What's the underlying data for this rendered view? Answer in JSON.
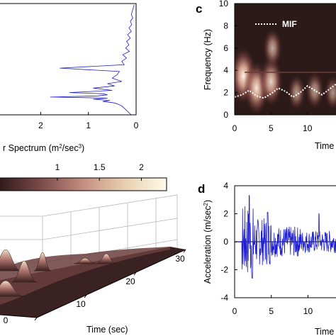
{
  "colors": {
    "series_blue": "#1f1fd0",
    "dark_bg": "#2b1a18",
    "mif_line": "#ffffff",
    "colorbar_low": "#3a2020",
    "colorbar_high": "#fffde8"
  },
  "panel_c": {
    "label": "c",
    "legend": "MIF"
  },
  "panel_d": {
    "label": "d"
  },
  "chart_data": [
    {
      "type": "line",
      "panel": "top-left (Fourier spectrum, frequency on vertical axis)",
      "xlabel": "r Spectrum (m²/sec³)",
      "xlabel_base": "r Spectrum (m",
      "xlabel_sup1": "2",
      "xlabel_mid": "/sec",
      "xlabel_sup2": "3",
      "xlabel_end": ")",
      "xticks": [
        "2",
        "1",
        "0"
      ],
      "xlim_reversed": [
        2.8,
        0
      ],
      "x": [
        0.04,
        0.06,
        0.08,
        0.1,
        0.07,
        0.12,
        0.09,
        0.15,
        0.1,
        0.18,
        0.12,
        0.2,
        0.15,
        0.22,
        0.14,
        0.28,
        0.2,
        0.3,
        0.25,
        1.6,
        0.35,
        0.4,
        0.5,
        0.3,
        0.6,
        0.45,
        0.9,
        0.5,
        1.4,
        0.7,
        0.6,
        0.8,
        1.8,
        0.6,
        0.9,
        0.55,
        0.7,
        0.5,
        0.4,
        0.35,
        0.3,
        0.25,
        0.2,
        0.15,
        0.1
      ],
      "y": [
        9.9,
        9.6,
        9.3,
        9.0,
        8.7,
        8.4,
        8.1,
        7.8,
        7.5,
        7.2,
        6.9,
        6.6,
        6.3,
        6.0,
        5.7,
        5.4,
        5.1,
        4.8,
        4.5,
        4.2,
        3.9,
        3.6,
        3.3,
        3.0,
        2.8,
        2.6,
        2.4,
        2.2,
        2.0,
        1.9,
        1.8,
        1.7,
        1.6,
        1.5,
        1.4,
        1.3,
        1.2,
        1.1,
        1.0,
        0.9,
        0.8,
        0.6,
        0.4,
        0.2,
        0.0
      ]
    },
    {
      "type": "heatmap",
      "panel": "c",
      "ylabel": "Frequency (Hz)",
      "xlabel": "Time",
      "xticks": [
        "0",
        "5",
        "10",
        "1"
      ],
      "yticks": [
        "0",
        "2",
        "4",
        "6",
        "8",
        "10"
      ],
      "ylim": [
        0,
        10
      ],
      "series": [
        {
          "name": "MIF",
          "x": [
            0,
            1,
            2,
            3,
            4,
            5,
            6,
            7,
            8,
            9,
            10,
            11,
            12,
            13,
            14
          ],
          "y": [
            1.6,
            1.8,
            2.2,
            1.7,
            1.5,
            1.9,
            2.4,
            2.1,
            1.6,
            2.0,
            2.6,
            2.2,
            1.8,
            2.3,
            2.8
          ]
        }
      ],
      "hotspots": [
        {
          "t": 1.2,
          "f": 3.5,
          "v": 1.0
        },
        {
          "t": 3.0,
          "f": 2.4,
          "v": 0.9
        },
        {
          "t": 5.0,
          "f": 3.0,
          "v": 0.8
        },
        {
          "t": 5.2,
          "f": 6.0,
          "v": 0.5
        },
        {
          "t": 8.5,
          "f": 2.0,
          "v": 0.4
        },
        {
          "t": 11.0,
          "f": 2.2,
          "v": 0.45
        },
        {
          "t": 13.5,
          "f": 2.0,
          "v": 0.35
        }
      ]
    },
    {
      "type": "line",
      "panel": "d",
      "ylabel": "Acceleration (m/sec²)",
      "ylabel_base": "Acceleration (m/sec",
      "ylabel_sup": "2",
      "ylabel_end": ")",
      "xlabel": "Time",
      "xticks": [
        "0",
        "5",
        "10",
        "1"
      ],
      "yticks": [
        "4",
        "2",
        "0",
        "-2",
        "-4"
      ],
      "ylim": [
        -4,
        4
      ],
      "xlim": [
        0,
        14.5
      ]
    },
    {
      "type": "surface",
      "panel": "bottom-left (3D time-frequency surface)",
      "xlabel": "Time (sec)",
      "time_ticks": [
        "0",
        "10",
        "20",
        "30"
      ],
      "colorbar_ticks": [
        "1",
        "1.5",
        "2"
      ],
      "colorbar_range": [
        0.3,
        2.3
      ]
    }
  ]
}
